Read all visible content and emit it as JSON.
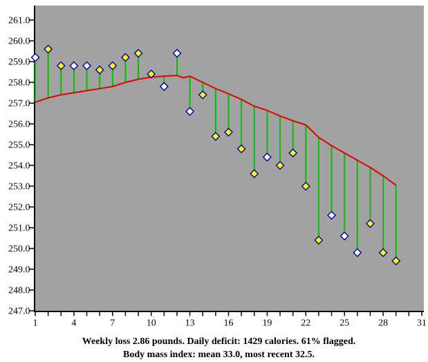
{
  "caption": {
    "line1": "Weekly loss 2.86 pounds. Daily deficit: 1429 calories. 61% flagged.",
    "line2": "Body mass index: mean 33.0, most recent 32.5."
  },
  "chart_data": {
    "type": "scatter",
    "title": "",
    "xlabel": "",
    "ylabel": "",
    "grid": false,
    "legend": "none",
    "xlim": [
      1,
      31
    ],
    "ylim": [
      247.0,
      261.7
    ],
    "x": [
      1,
      2,
      3,
      4,
      5,
      6,
      7,
      8,
      9,
      10,
      11,
      12,
      13,
      14,
      15,
      16,
      17,
      18,
      19,
      20,
      21,
      22,
      23,
      24,
      25,
      26,
      27,
      28,
      29
    ],
    "series": [
      {
        "name": "daily-weight",
        "marker": "diamond",
        "values": [
          259.2,
          259.6,
          258.8,
          258.8,
          258.8,
          258.6,
          258.8,
          259.2,
          259.4,
          258.4,
          257.8,
          259.4,
          256.6,
          257.4,
          255.4,
          255.6,
          254.8,
          253.6,
          254.4,
          254.0,
          254.6,
          253.0,
          250.4,
          251.6,
          250.6,
          249.8,
          251.2,
          249.8,
          249.4
        ],
        "flagged": [
          false,
          true,
          true,
          false,
          false,
          true,
          true,
          true,
          true,
          true,
          false,
          false,
          false,
          true,
          true,
          true,
          true,
          true,
          false,
          true,
          true,
          true,
          true,
          false,
          false,
          false,
          true,
          true,
          true
        ]
      },
      {
        "name": "trend",
        "style": "line",
        "points": [
          [
            1,
            257.05
          ],
          [
            2,
            257.25
          ],
          [
            3,
            257.4
          ],
          [
            4,
            257.5
          ],
          [
            5,
            257.6
          ],
          [
            6,
            257.7
          ],
          [
            7,
            257.8
          ],
          [
            8,
            258.0
          ],
          [
            9,
            258.15
          ],
          [
            10,
            258.25
          ],
          [
            11,
            258.3
          ],
          [
            12,
            258.33
          ],
          [
            12.5,
            258.22
          ],
          [
            13,
            258.3
          ],
          [
            14,
            258.0
          ],
          [
            15,
            257.7
          ],
          [
            16,
            257.45
          ],
          [
            17,
            257.18
          ],
          [
            18,
            256.85
          ],
          [
            19,
            256.65
          ],
          [
            20,
            256.38
          ],
          [
            21,
            256.15
          ],
          [
            22,
            255.95
          ],
          [
            23,
            255.35
          ],
          [
            24,
            254.95
          ],
          [
            25,
            254.6
          ],
          [
            26,
            254.25
          ],
          [
            27,
            253.9
          ],
          [
            28,
            253.5
          ],
          [
            29,
            253.05
          ]
        ]
      }
    ],
    "y_tick_labels": [
      "261.0",
      "260.0",
      "259.0",
      "258.0",
      "257.0",
      "256.0",
      "255.0",
      "254.0",
      "253.0",
      "252.0",
      "251.0",
      "250.0",
      "249.0",
      "248.0",
      "247.0"
    ],
    "x_tick_labels": [
      "1",
      "4",
      "7",
      "10",
      "13",
      "16",
      "19",
      "22",
      "25",
      "28",
      "31"
    ],
    "x_minor_tick_every": 1,
    "colors": {
      "page_bg": "#ffffff",
      "plot_bg": "#a2a2a2",
      "trend_line": "#e00000",
      "flag_stem": "#00c000",
      "marker_border": "#000099",
      "marker_flagged_fill": "#ffff00",
      "marker_unflagged_fill": "#ffffff",
      "axis": "#000000",
      "text": "#000000"
    }
  }
}
